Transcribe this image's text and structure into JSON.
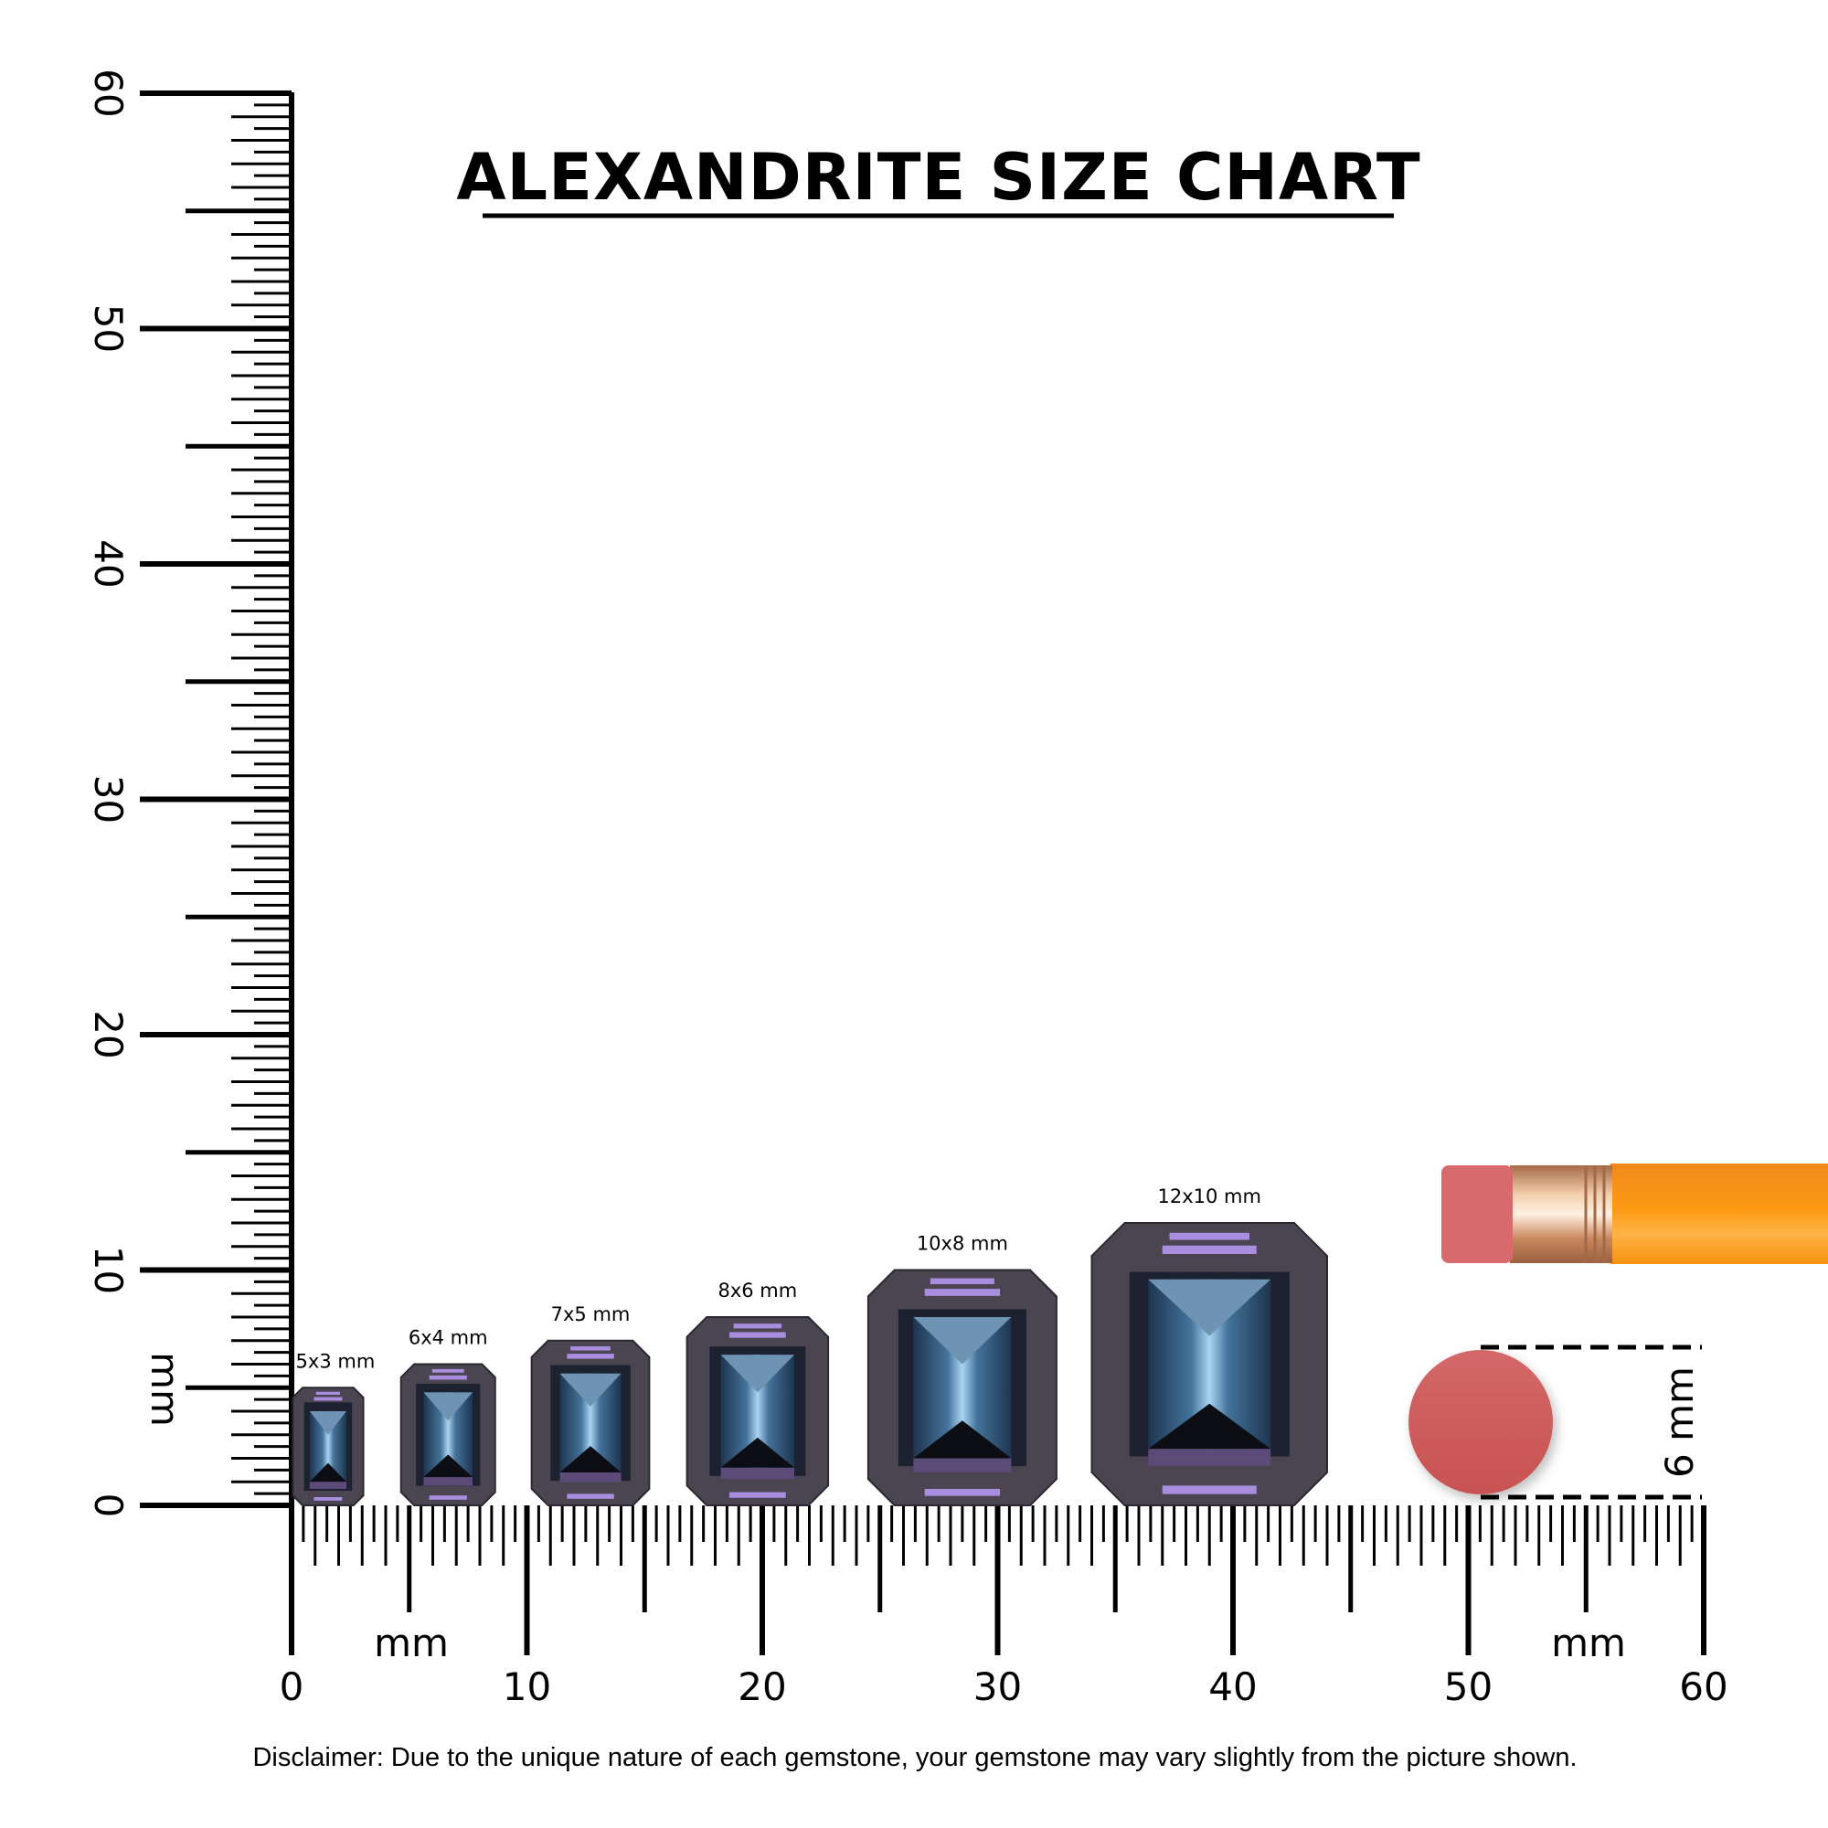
{
  "title": "ALEXANDRITE SIZE CHART",
  "unit_label": "mm",
  "ruler": {
    "horizontal_labels": [
      "0",
      "10",
      "20",
      "30",
      "40",
      "50",
      "60"
    ],
    "vertical_labels": [
      "0",
      "10",
      "20",
      "30",
      "40",
      "50",
      "60"
    ],
    "max_mm": 60
  },
  "gems": [
    {
      "label": "5x3 mm",
      "length_mm": 5,
      "width_mm": 3
    },
    {
      "label": "6x4 mm",
      "length_mm": 6,
      "width_mm": 4
    },
    {
      "label": "7x5 mm",
      "length_mm": 7,
      "width_mm": 5
    },
    {
      "label": "8x6 mm",
      "length_mm": 8,
      "width_mm": 6
    },
    {
      "label": "10x8 mm",
      "length_mm": 10,
      "width_mm": 8
    },
    {
      "label": "12x10 mm",
      "length_mm": 12,
      "width_mm": 10
    }
  ],
  "eraser_reference": {
    "label": "6 mm",
    "diameter_mm": 6
  },
  "disclaimer": "Disclaimer: Due to the unique nature of each gemstone, your gemstone may vary slightly from the picture shown.",
  "colors": {
    "gem_body": "#4a4550",
    "gem_blue": "#8fb6d8",
    "gem_violet": "#a98ee0",
    "eraser": "#d05a5a",
    "pencil": "#f7931e",
    "ferrule": "#d9a27a"
  }
}
